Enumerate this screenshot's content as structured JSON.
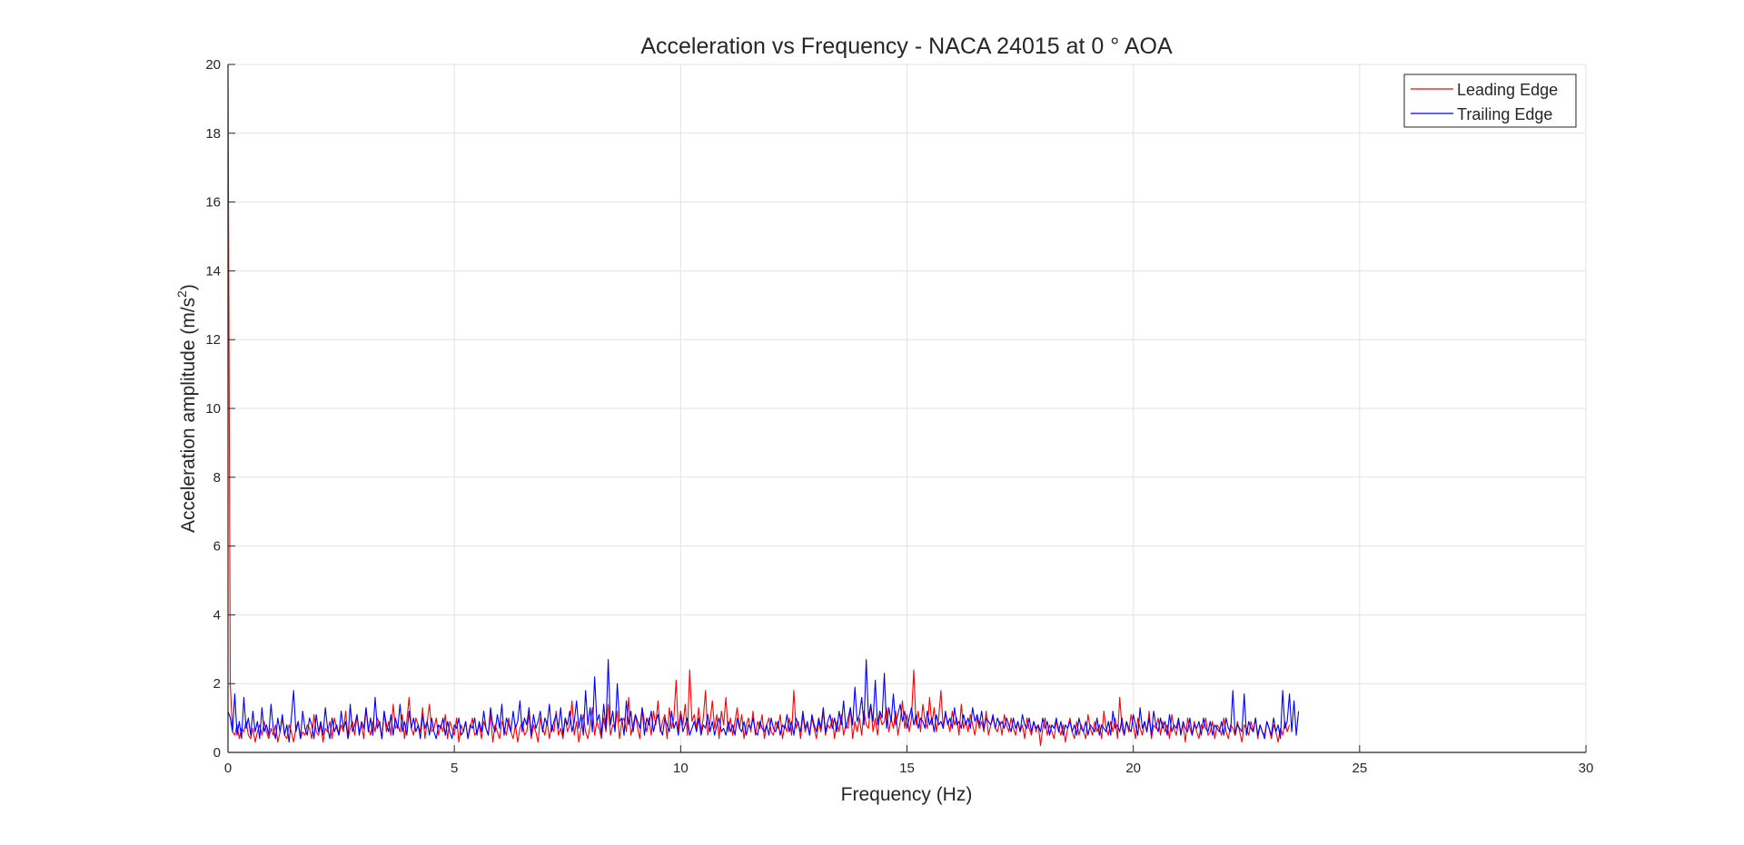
{
  "chart_data": {
    "type": "line",
    "title": "Acceleration vs Frequency - NACA 24015 at 0 ° AOA",
    "xlabel": "Frequency (Hz)",
    "ylabel_main": "Acceleration amplitude (m/s",
    "ylabel_sup": "2",
    "ylabel_close": ")",
    "xlim": [
      0,
      30
    ],
    "ylim": [
      0,
      20
    ],
    "x_ticks": [
      "0",
      "5",
      "10",
      "15",
      "20",
      "25",
      "30"
    ],
    "y_ticks": [
      "0",
      "2",
      "4",
      "6",
      "8",
      "10",
      "12",
      "14",
      "16",
      "18",
      "20"
    ],
    "grid": true,
    "legend_position": "top-right",
    "x_start": 0,
    "x_step": 0.05,
    "series": [
      {
        "name": "Leading Edge",
        "color": "#ff0000",
        "values": [
          20,
          2.0,
          0.6,
          0.5,
          0.8,
          0.4,
          0.7,
          0.6,
          0.9,
          0.5,
          0.4,
          0.7,
          0.3,
          0.6,
          0.8,
          0.5,
          0.9,
          0.6,
          0.4,
          0.7,
          0.5,
          0.8,
          0.3,
          0.6,
          1.0,
          0.5,
          0.4,
          0.8,
          0.6,
          0.3,
          0.7,
          0.9,
          0.4,
          0.6,
          0.5,
          0.8,
          0.7,
          0.4,
          1.1,
          0.6,
          0.5,
          0.8,
          0.3,
          0.7,
          0.6,
          0.9,
          0.4,
          1.0,
          0.7,
          0.5,
          0.8,
          0.6,
          1.2,
          0.4,
          0.7,
          0.9,
          0.5,
          1.1,
          0.6,
          0.8,
          0.4,
          1.3,
          0.7,
          0.5,
          0.9,
          0.6,
          1.0,
          0.8,
          0.4,
          1.2,
          0.6,
          0.9,
          0.5,
          1.4,
          0.7,
          0.8,
          0.6,
          1.1,
          0.4,
          0.9,
          1.6,
          0.7,
          0.5,
          1.0,
          0.8,
          0.6,
          1.3,
          0.4,
          0.9,
          1.4,
          0.6,
          0.7,
          1.0,
          0.5,
          0.8,
          0.6,
          1.1,
          0.4,
          0.9,
          0.7,
          0.5,
          1.0,
          0.3,
          0.8,
          0.6,
          0.9,
          0.4,
          0.7,
          1.0,
          0.5,
          0.6,
          0.8,
          0.4,
          0.9,
          0.7,
          0.5,
          1.1,
          0.3,
          0.8,
          0.6,
          0.4,
          0.9,
          0.7,
          0.5,
          1.0,
          0.6,
          0.4,
          0.8,
          0.3,
          0.7,
          0.9,
          0.5,
          0.6,
          1.1,
          0.4,
          0.8,
          0.6,
          0.3,
          1.0,
          0.7,
          0.5,
          0.9,
          0.4,
          0.8,
          0.6,
          1.2,
          0.5,
          0.7,
          0.4,
          1.0,
          0.6,
          0.8,
          1.5,
          0.5,
          0.9,
          0.3,
          0.7,
          1.1,
          0.6,
          0.4,
          0.8,
          1.3,
          0.5,
          0.9,
          0.7,
          0.4,
          1.0,
          0.6,
          1.4,
          0.5,
          0.8,
          0.7,
          1.2,
          0.4,
          0.9,
          1.0,
          0.6,
          1.6,
          0.5,
          0.8,
          1.1,
          0.7,
          0.4,
          1.3,
          0.9,
          0.6,
          1.0,
          0.5,
          1.2,
          0.8,
          1.5,
          0.6,
          0.9,
          1.1,
          0.4,
          1.3,
          0.7,
          1.0,
          2.1,
          0.6,
          1.2,
          0.8,
          1.4,
          0.5,
          2.4,
          0.9,
          1.1,
          0.7,
          1.3,
          0.6,
          1.0,
          1.8,
          0.5,
          0.9,
          1.5,
          0.7,
          1.1,
          0.4,
          1.2,
          0.8,
          1.6,
          0.6,
          1.0,
          0.5,
          0.9,
          1.3,
          0.7,
          1.1,
          0.4,
          0.8,
          1.0,
          0.6,
          1.2,
          0.5,
          0.9,
          0.7,
          1.1,
          0.4,
          0.8,
          1.0,
          0.6,
          0.5,
          0.9,
          0.7,
          1.1,
          0.4,
          0.8,
          0.6,
          1.0,
          0.5,
          1.8,
          0.7,
          0.9,
          0.4,
          1.1,
          0.6,
          0.8,
          0.5,
          1.0,
          0.7,
          0.4,
          0.9,
          0.6,
          1.2,
          0.5,
          0.8,
          0.7,
          1.0,
          0.4,
          0.9,
          0.6,
          1.1,
          0.5,
          0.8,
          0.7,
          1.3,
          0.4,
          0.9,
          0.6,
          1.0,
          0.5,
          1.2,
          0.8,
          0.7,
          1.4,
          0.6,
          1.0,
          0.5,
          1.1,
          0.8,
          0.9,
          1.3,
          0.6,
          1.0,
          0.7,
          1.2,
          0.5,
          0.9,
          1.5,
          0.7,
          1.1,
          0.6,
          1.0,
          2.4,
          0.8,
          1.2,
          0.6,
          1.4,
          0.9,
          0.7,
          1.6,
          0.8,
          1.3,
          0.6,
          1.0,
          1.8,
          0.7,
          1.1,
          0.9,
          0.6,
          1.2,
          0.8,
          1.0,
          0.5,
          1.4,
          0.7,
          0.9,
          0.6,
          1.1,
          0.8,
          0.5,
          1.0,
          0.7,
          0.9,
          0.6,
          1.2,
          0.5,
          0.8,
          1.0,
          0.7,
          0.6,
          0.9,
          0.5,
          1.1,
          0.8,
          0.6,
          1.0,
          0.7,
          0.5,
          0.9,
          0.6,
          0.8,
          0.4,
          1.0,
          0.7,
          0.5,
          0.9,
          0.6,
          0.8,
          0.2,
          0.7,
          1.0,
          0.5,
          0.8,
          0.6,
          0.4,
          0.9,
          0.7,
          0.5,
          0.8,
          0.3,
          0.7,
          1.0,
          0.6,
          0.4,
          0.9,
          0.5,
          0.8,
          0.6,
          0.4,
          1.1,
          0.7,
          0.5,
          0.9,
          0.6,
          0.8,
          0.4,
          1.2,
          0.7,
          0.5,
          0.9,
          0.6,
          1.0,
          0.4,
          1.6,
          0.7,
          0.5,
          0.9,
          0.6,
          1.1,
          0.8,
          0.4,
          1.0,
          0.7,
          0.5,
          0.9,
          0.6,
          1.2,
          0.4,
          0.8,
          0.7,
          1.0,
          0.5,
          0.9,
          0.6,
          0.8,
          0.4,
          1.1,
          0.7,
          0.5,
          0.9,
          0.6,
          0.8,
          0.3,
          1.0,
          0.7,
          0.5,
          0.9,
          0.6,
          0.4,
          0.8,
          0.7,
          1.0,
          0.5,
          0.6,
          0.9,
          0.4,
          0.8,
          0.7,
          0.5,
          1.0,
          0.6,
          0.4,
          0.8,
          0.7,
          0.5,
          0.9,
          0.6,
          0.3,
          0.8,
          0.7,
          0.5,
          0.9,
          0.6,
          1.0,
          0.4,
          0.8,
          0.6,
          0.5,
          0.9,
          0.7,
          0.4,
          0.8,
          0.6,
          0.3,
          0.7,
          0.5,
          0.9,
          0.6,
          0.8
        ]
      },
      {
        "name": "Trailing Edge",
        "color": "#0000ff",
        "values": [
          1.2,
          1.0,
          0.6,
          1.7,
          0.5,
          0.9,
          0.4,
          1.6,
          0.7,
          1.0,
          0.5,
          1.2,
          0.6,
          0.9,
          0.4,
          1.3,
          0.6,
          0.8,
          0.5,
          1.4,
          0.7,
          0.4,
          1.0,
          0.6,
          1.1,
          0.5,
          0.8,
          0.3,
          1.0,
          1.8,
          0.6,
          0.9,
          0.4,
          1.2,
          0.7,
          0.5,
          1.0,
          0.8,
          0.4,
          1.1,
          0.6,
          0.9,
          0.5,
          1.3,
          0.7,
          0.4,
          1.0,
          0.6,
          0.8,
          0.5,
          1.2,
          0.7,
          0.9,
          0.4,
          1.4,
          0.6,
          0.8,
          1.1,
          0.5,
          0.9,
          0.7,
          1.3,
          0.6,
          1.0,
          0.5,
          1.6,
          0.7,
          0.9,
          0.4,
          1.2,
          0.8,
          0.6,
          1.1,
          0.5,
          1.0,
          0.7,
          1.4,
          0.6,
          0.9,
          0.5,
          1.2,
          0.7,
          1.0,
          0.6,
          0.8,
          0.4,
          1.1,
          0.7,
          0.9,
          0.5,
          1.0,
          0.6,
          0.4,
          0.8,
          0.7,
          1.0,
          0.5,
          0.9,
          0.6,
          0.4,
          0.8,
          0.7,
          1.0,
          0.5,
          0.6,
          0.9,
          0.4,
          0.8,
          0.7,
          1.0,
          0.5,
          0.9,
          0.6,
          1.2,
          0.7,
          0.5,
          1.3,
          0.8,
          0.6,
          1.1,
          0.7,
          1.4,
          0.5,
          1.0,
          0.8,
          0.6,
          1.2,
          0.7,
          0.9,
          1.5,
          0.6,
          1.0,
          0.8,
          1.3,
          0.5,
          1.1,
          0.7,
          0.9,
          1.2,
          0.6,
          1.0,
          0.8,
          1.4,
          0.6,
          0.9,
          1.1,
          0.7,
          1.3,
          0.5,
          1.0,
          0.8,
          1.2,
          0.6,
          0.9,
          1.5,
          0.7,
          1.1,
          0.5,
          1.8,
          0.8,
          1.3,
          0.6,
          2.2,
          0.9,
          1.1,
          0.5,
          1.4,
          0.7,
          2.7,
          0.8,
          1.2,
          0.6,
          2.0,
          0.9,
          1.0,
          0.5,
          1.5,
          0.8,
          1.2,
          0.6,
          1.1,
          0.9,
          0.7,
          1.3,
          0.5,
          1.0,
          0.8,
          1.2,
          0.6,
          0.9,
          1.1,
          0.7,
          0.5,
          1.0,
          0.8,
          0.6,
          1.2,
          0.7,
          0.9,
          0.5,
          1.1,
          0.6,
          0.8,
          1.0,
          0.5,
          0.7,
          0.9,
          0.6,
          1.0,
          0.5,
          0.8,
          0.7,
          1.1,
          0.6,
          0.9,
          0.5,
          0.8,
          1.0,
          0.6,
          0.7,
          0.5,
          0.9,
          0.6,
          0.8,
          0.5,
          1.0,
          0.7,
          0.6,
          0.9,
          0.5,
          0.8,
          0.7,
          1.0,
          0.6,
          0.5,
          0.9,
          0.7,
          0.6,
          0.8,
          0.5,
          1.0,
          0.7,
          0.6,
          0.9,
          0.5,
          0.8,
          0.7,
          1.1,
          0.6,
          0.9,
          0.5,
          1.0,
          0.8,
          0.6,
          1.2,
          0.7,
          0.9,
          0.5,
          1.1,
          0.8,
          0.6,
          1.0,
          0.7,
          1.3,
          0.6,
          0.9,
          1.1,
          0.7,
          1.0,
          0.6,
          1.2,
          0.8,
          1.5,
          0.7,
          1.0,
          1.3,
          0.8,
          1.9,
          0.9,
          1.1,
          1.6,
          0.8,
          2.7,
          1.0,
          1.4,
          0.9,
          2.1,
          0.8,
          1.2,
          1.0,
          2.3,
          0.7,
          1.3,
          0.9,
          1.7,
          0.8,
          1.1,
          1.4,
          0.9,
          1.2,
          0.7,
          1.0,
          1.3,
          0.8,
          1.1,
          0.7,
          1.0,
          0.9,
          0.7,
          1.2,
          0.8,
          1.0,
          0.6,
          1.1,
          0.8,
          0.9,
          0.7,
          1.2,
          0.8,
          1.0,
          0.7,
          1.3,
          0.8,
          0.9,
          0.7,
          1.1,
          0.8,
          1.0,
          0.7,
          1.3,
          0.9,
          1.1,
          0.8,
          1.2,
          0.7,
          1.0,
          0.9,
          0.8,
          1.1,
          0.7,
          1.0,
          0.8,
          0.9,
          0.7,
          1.0,
          0.8,
          0.6,
          1.0,
          0.7,
          0.9,
          0.6,
          1.1,
          0.8,
          0.7,
          1.0,
          0.6,
          0.9,
          0.7,
          0.8,
          0.6,
          1.0,
          0.7,
          0.9,
          0.5,
          0.8,
          0.7,
          1.0,
          0.6,
          0.9,
          0.5,
          0.8,
          0.7,
          0.9,
          0.6,
          0.8,
          0.5,
          1.0,
          0.7,
          0.6,
          0.9,
          0.5,
          0.8,
          0.7,
          0.6,
          1.0,
          0.5,
          0.8,
          0.7,
          0.6,
          0.9,
          0.5,
          1.2,
          0.7,
          0.8,
          0.6,
          1.0,
          0.5,
          0.9,
          0.7,
          0.6,
          1.1,
          0.8,
          0.5,
          1.3,
          0.7,
          0.9,
          0.6,
          1.0,
          0.5,
          1.2,
          0.8,
          0.6,
          1.0,
          0.7,
          0.9,
          0.5,
          1.1,
          0.6,
          0.8,
          0.7,
          1.0,
          0.5,
          0.9,
          0.7,
          0.6,
          1.0,
          0.5,
          0.8,
          0.7,
          0.9,
          0.5,
          1.0,
          0.7,
          0.6,
          0.9,
          0.5,
          0.8,
          0.7,
          0.6,
          0.9,
          0.5,
          1.0,
          0.7,
          0.6,
          1.8,
          0.5,
          0.8,
          0.7,
          0.6,
          1.7,
          0.5,
          0.9,
          0.7,
          0.6,
          1.0,
          0.5,
          0.8,
          0.6,
          0.4,
          0.9,
          0.7,
          0.5,
          1.0,
          0.6,
          0.8,
          0.4,
          1.8,
          0.7,
          0.9,
          1.7,
          0.6,
          1.5,
          0.5,
          1.2
        ]
      }
    ]
  }
}
